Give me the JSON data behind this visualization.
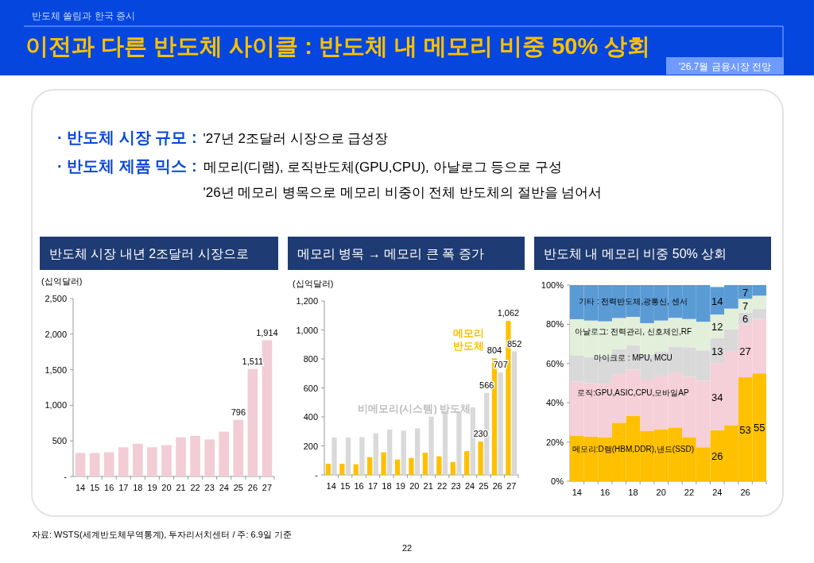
{
  "chart_data": [
    {
      "type": "other",
      "title": "이전과 다른 반도체 사이클 : 반도체 내 메모리 비중 50% 상회",
      "subtitle": "반도체 쏠림과 한국 증시",
      "annotations": [
        "'26.7월 금융시장 전망",
        "· 반도체 시장 규모 :",
        "'27년 2조달러 시장으로 급성장",
        "· 반도체 제품 믹스 :",
        "메모리(디램), 로직반도체(GPU,CPU), 아날로그 등으로 구성",
        "'26년 메모리 병목으로 메모리 비중이 전체 반도체의 절반을 넘어서",
        "자료: WSTS(세계반도체무역통계), 투자리서치센터 / 주: 6.9일 기준",
        "22"
      ]
    },
    {
      "type": "bar",
      "title": "반도체 시장 내년 2조달러 시장으로",
      "ylabel": "(십억달러)",
      "categories": [
        "14",
        "15",
        "16",
        "17",
        "18",
        "19",
        "20",
        "21",
        "22",
        "23",
        "24",
        "25",
        "26",
        "27"
      ],
      "values": [
        330,
        330,
        340,
        410,
        460,
        410,
        440,
        550,
        570,
        520,
        630,
        796,
        1511,
        1914
      ],
      "value_labels": [
        null,
        null,
        null,
        null,
        null,
        null,
        null,
        null,
        null,
        null,
        null,
        "796",
        "1,511",
        "1,914"
      ],
      "color": "#f2cdd5",
      "ylim": [
        0,
        2500
      ],
      "yticks": [
        {
          "value": 0,
          "label": "-"
        },
        500,
        {
          "value": 1000,
          "label": "1,000"
        },
        {
          "value": 1500,
          "label": "1,500"
        },
        {
          "value": 2000,
          "label": "2,000"
        },
        {
          "value": 2500,
          "label": "2,500"
        }
      ]
    },
    {
      "type": "bar",
      "title": "메모리 병목 → 메모리 큰 폭 증가",
      "ylabel": "(십억달러)",
      "categories": [
        "14",
        "15",
        "16",
        "17",
        "18",
        "19",
        "20",
        "21",
        "22",
        "23",
        "24",
        "25",
        "26",
        "27"
      ],
      "series": [
        {
          "name": "메모리 반도체",
          "color": "#ffc000",
          "values": [
            77,
            77,
            73,
            122,
            155,
            106,
            117,
            153,
            128,
            89,
            164,
            230,
            804,
            1062
          ],
          "value_labels": [
            null,
            null,
            null,
            null,
            null,
            null,
            null,
            null,
            null,
            null,
            null,
            "230",
            "804",
            "1,062"
          ]
        },
        {
          "name": "비메모리(시스템) 반도체",
          "color": "#d9d9d9",
          "values": [
            258,
            258,
            261,
            287,
            312,
            305,
            321,
            402,
            442,
            435,
            466,
            566,
            707,
            852
          ],
          "value_labels": [
            null,
            null,
            null,
            null,
            null,
            null,
            null,
            null,
            null,
            null,
            null,
            "566",
            "707",
            "852"
          ]
        }
      ],
      "ylim": [
        0,
        1200
      ],
      "yticks": [
        {
          "value": 0,
          "label": "-"
        },
        200,
        400,
        600,
        800,
        {
          "value": 1000,
          "label": "1,000"
        },
        {
          "value": 1200,
          "label": "1,200"
        }
      ]
    },
    {
      "type": "bar",
      "stacked": true,
      "title": "반도체 내 메모리 비중 50% 상회",
      "categories": [
        "14",
        null,
        "16",
        null,
        "18",
        null,
        "20",
        null,
        "22",
        null,
        "24",
        null,
        "26",
        null
      ],
      "series": [
        {
          "name": "메모리:D램(HBM,DDR),낸드(SSD)",
          "color": "#ffc000",
          "values": [
            23.3,
            22.8,
            22.5,
            29.8,
            33.4,
            25.7,
            26.5,
            27.4,
            22.5,
            17.3,
            26,
            28.6,
            53,
            55
          ],
          "value_labels": [
            null,
            null,
            null,
            null,
            null,
            null,
            null,
            null,
            null,
            null,
            "26",
            null,
            "53",
            "55"
          ]
        },
        {
          "name": "로직:GPU,ASIC,CPU,모바일AP",
          "color": "#f5d0d8",
          "values": [
            27.5,
            27.2,
            27,
            24.8,
            23.5,
            26.1,
            27,
            28.1,
            30.7,
            33.9,
            34,
            37.8,
            27,
            27.8
          ],
          "value_labels": [
            null,
            null,
            null,
            null,
            null,
            null,
            null,
            null,
            null,
            null,
            "34",
            null,
            "27",
            null
          ]
        },
        {
          "name": "마이크로 : MPU, MCU",
          "color": "#d9d9d9",
          "values": [
            13.4,
            13.3,
            14.1,
            12.8,
            12.5,
            12.6,
            12.5,
            13.1,
            15.1,
            15.5,
            13,
            11,
            6,
            5.2
          ],
          "value_labels": [
            null,
            null,
            null,
            null,
            null,
            null,
            null,
            null,
            null,
            null,
            "13",
            null,
            "6",
            null
          ]
        },
        {
          "name": "아날로그: 전력관리, 신호체인,RF",
          "color": "#e2efda",
          "values": [
            18.4,
            18.6,
            17.9,
            15.8,
            14.4,
            16.2,
            15.9,
            14.7,
            14.4,
            14.6,
            12,
            10.6,
            7,
            6.6
          ],
          "value_labels": [
            null,
            null,
            null,
            null,
            null,
            null,
            null,
            null,
            null,
            null,
            "12",
            null,
            "7",
            null
          ]
        },
        {
          "name": "기타 : 전력반도체,광통신, 센서",
          "color": "#5b9bd5",
          "values": [
            17.4,
            18.1,
            18.5,
            16.8,
            16.2,
            19.4,
            18.1,
            16.7,
            17.3,
            18.7,
            14,
            12,
            7,
            5.4
          ],
          "value_labels": [
            null,
            null,
            null,
            null,
            null,
            null,
            null,
            null,
            null,
            null,
            "14",
            null,
            "7",
            null
          ]
        }
      ],
      "ylim": [
        0,
        100
      ],
      "yticks": [
        {
          "value": 0,
          "label": "0%"
        },
        {
          "value": 20,
          "label": "20%"
        },
        {
          "value": 40,
          "label": "40%"
        },
        {
          "value": 60,
          "label": "60%"
        },
        {
          "value": 80,
          "label": "80%"
        },
        {
          "value": 100,
          "label": "100%"
        }
      ]
    }
  ]
}
